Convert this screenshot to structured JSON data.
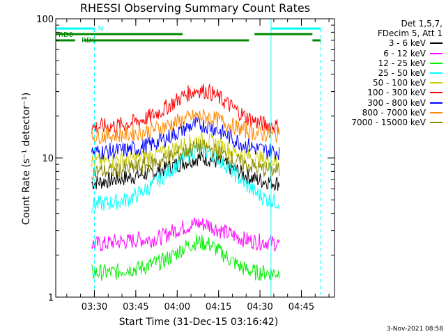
{
  "chart_data": {
    "type": "line",
    "title": "RHESSI Observing Summary Count Rates",
    "xlabel": "Start Time (31-Dec-15 03:16:42)",
    "ylabel": "Count Rate (s⁻¹ detector⁻¹)",
    "xscale": "time-minutes",
    "yscale": "log",
    "xlim": [
      "03:16",
      "04:57"
    ],
    "ylim": [
      1,
      100
    ],
    "x_ticks": [
      "03:30",
      "03:45",
      "04:00",
      "04:15",
      "04:30",
      "04:45"
    ],
    "y_ticks": [
      "1",
      "10",
      "100"
    ],
    "data_start": "03:29",
    "data_end": "04:37",
    "legend_placement": "right",
    "legend_header": [
      "Det 1,5,7,",
      "FDecim 5, Att 1"
    ],
    "series": [
      {
        "name": "3 - 6 keV",
        "color": "#000000",
        "values": [
          6.6,
          6.8,
          7.0,
          7.2,
          7.5,
          7.8,
          8.2,
          8.8,
          9.4,
          10.0,
          9.9,
          9.2,
          8.4,
          7.6,
          7.0,
          6.8,
          6.6
        ]
      },
      {
        "name": "6 - 12 keV",
        "color": "#ff00ff",
        "values": [
          2.4,
          2.4,
          2.5,
          2.5,
          2.6,
          2.6,
          2.7,
          3.0,
          3.2,
          3.4,
          3.3,
          3.0,
          2.8,
          2.6,
          2.5,
          2.5,
          2.4
        ]
      },
      {
        "name": "12 - 25 keV",
        "color": "#00ee00",
        "values": [
          1.5,
          1.5,
          1.5,
          1.6,
          1.6,
          1.7,
          1.8,
          2.0,
          2.3,
          2.5,
          2.4,
          2.1,
          1.8,
          1.6,
          1.5,
          1.5,
          1.5
        ]
      },
      {
        "name": "25 - 50 keV",
        "color": "#00ffff",
        "values": [
          4.6,
          4.7,
          4.8,
          5.0,
          5.5,
          6.2,
          7.2,
          8.6,
          10.2,
          11.5,
          11.0,
          9.6,
          8.0,
          6.6,
          5.6,
          5.0,
          4.8
        ]
      },
      {
        "name": "50 - 100 keV",
        "color": "#cccc00",
        "values": [
          9.4,
          9.5,
          9.6,
          9.8,
          10.0,
          10.3,
          10.8,
          11.6,
          12.6,
          13.5,
          13.2,
          12.2,
          11.2,
          10.4,
          9.9,
          9.6,
          9.4
        ]
      },
      {
        "name": "100 - 300 keV",
        "color": "#ff0000",
        "values": [
          16.6,
          16.8,
          17.0,
          17.5,
          18.4,
          19.8,
          22.0,
          25.0,
          28.5,
          31.0,
          30.0,
          26.5,
          23.0,
          20.0,
          18.2,
          17.2,
          16.8
        ]
      },
      {
        "name": "300 - 800 keV",
        "color": "#0000ff",
        "values": [
          11.0,
          11.1,
          11.2,
          11.4,
          11.8,
          12.4,
          13.4,
          14.8,
          16.4,
          17.5,
          17.0,
          15.4,
          13.8,
          12.5,
          11.7,
          11.3,
          11.1
        ]
      },
      {
        "name": "800 - 7000 keV",
        "color": "#ff8800",
        "values": [
          14.4,
          14.5,
          14.6,
          14.8,
          15.2,
          15.8,
          16.6,
          17.8,
          19.0,
          20.0,
          19.6,
          18.4,
          17.0,
          15.9,
          15.1,
          14.7,
          14.5
        ]
      },
      {
        "name": "7000 - 15000 keV",
        "color": "#888800",
        "values": [
          8.0,
          8.0,
          8.1,
          8.3,
          8.6,
          9.0,
          9.6,
          10.4,
          11.2,
          12.0,
          11.7,
          10.8,
          9.8,
          9.0,
          8.5,
          8.2,
          8.1
        ]
      }
    ],
    "annotations": [
      "N",
      "RD0",
      "RD6"
    ],
    "night_intervals": [
      [
        "03:16",
        "03:30"
      ],
      [
        "04:34",
        "04:52"
      ]
    ],
    "decimation_bars": [
      [
        "03:16",
        "04:02"
      ],
      [
        "04:28",
        "04:49"
      ]
    ],
    "decimation_bars_lower": [
      [
        "03:16",
        "03:23"
      ],
      [
        "03:26",
        "04:02"
      ],
      [
        "04:02",
        "04:26"
      ],
      [
        "04:49",
        "04:52"
      ]
    ],
    "colors": {
      "night": "#00ffff",
      "decimation": "#008800",
      "axes": "#000000"
    }
  },
  "footer_date": "3-Nov-2021 08:58"
}
